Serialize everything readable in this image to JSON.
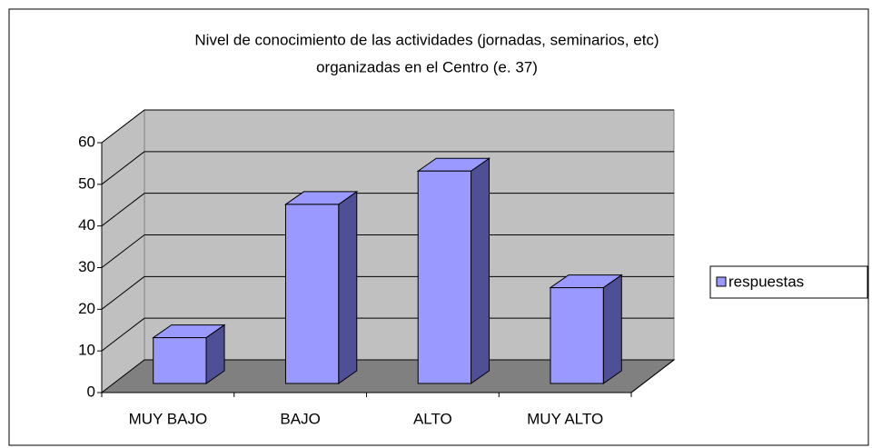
{
  "chart_data": {
    "type": "bar",
    "title": "Nivel de conocimiento de las actividades (jornadas, seminarios, etc)",
    "subtitle": "organizadas en el Centro (e. 37)",
    "categories": [
      "MUY BAJO",
      "BAJO",
      "ALTO",
      "MUY ALTO"
    ],
    "series": [
      {
        "name": "respuestas",
        "color": "#9999ff",
        "values": [
          11,
          43,
          51,
          23
        ]
      }
    ],
    "ylim": [
      0,
      60
    ],
    "yticks": [
      0,
      10,
      20,
      30,
      40,
      50,
      60
    ],
    "grid": true,
    "legend": "right"
  }
}
